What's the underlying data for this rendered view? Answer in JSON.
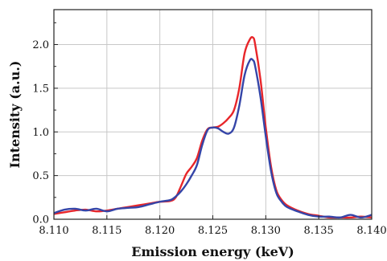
{
  "chart_data": {
    "type": "line",
    "title": "",
    "xlabel": "Emission energy (keV)",
    "ylabel": "Intensity (a.u.)",
    "xlim": [
      8.11,
      8.14
    ],
    "ylim": [
      0,
      2.4
    ],
    "xticks": [
      "8.110",
      "8.115",
      "8.120",
      "8.125",
      "8.130",
      "8.135",
      "8.140"
    ],
    "yticks": [
      "0.0",
      "0.5",
      "1.0",
      "1.5",
      "2.0"
    ],
    "grid": true,
    "colors": {
      "red": "#e8262a",
      "blue": "#3545a8",
      "grid": "#c8c8c8",
      "frame": "#222222"
    },
    "series": [
      {
        "color": "#e8262a",
        "x": [
          8.11,
          8.111,
          8.112,
          8.113,
          8.114,
          8.115,
          8.116,
          8.117,
          8.118,
          8.119,
          8.12,
          8.121,
          8.1215,
          8.122,
          8.1225,
          8.123,
          8.1235,
          8.124,
          8.1245,
          8.125,
          8.1255,
          8.126,
          8.1265,
          8.127,
          8.1275,
          8.128,
          8.1285,
          8.1288,
          8.129,
          8.1295,
          8.13,
          8.1305,
          8.131,
          8.1315,
          8.132,
          8.133,
          8.134,
          8.135,
          8.136,
          8.137,
          8.138,
          8.139,
          8.14
        ],
        "y": [
          0.06,
          0.08,
          0.1,
          0.11,
          0.09,
          0.1,
          0.12,
          0.14,
          0.16,
          0.18,
          0.2,
          0.21,
          0.25,
          0.38,
          0.52,
          0.6,
          0.7,
          0.9,
          1.03,
          1.05,
          1.06,
          1.1,
          1.16,
          1.25,
          1.5,
          1.9,
          2.06,
          2.08,
          2.0,
          1.6,
          1.05,
          0.6,
          0.33,
          0.22,
          0.16,
          0.1,
          0.06,
          0.04,
          0.02,
          0.02,
          0.02,
          0.03,
          0.02
        ]
      },
      {
        "color": "#3545a8",
        "x": [
          8.11,
          8.111,
          8.112,
          8.113,
          8.114,
          8.115,
          8.116,
          8.117,
          8.118,
          8.119,
          8.12,
          8.121,
          8.1215,
          8.122,
          8.1225,
          8.123,
          8.1235,
          8.124,
          8.1245,
          8.125,
          8.1255,
          8.126,
          8.1265,
          8.127,
          8.1275,
          8.128,
          8.1285,
          8.1288,
          8.129,
          8.1295,
          8.13,
          8.1305,
          8.131,
          8.1315,
          8.132,
          8.133,
          8.134,
          8.135,
          8.136,
          8.137,
          8.138,
          8.139,
          8.14
        ],
        "y": [
          0.07,
          0.11,
          0.12,
          0.1,
          0.12,
          0.09,
          0.12,
          0.13,
          0.14,
          0.17,
          0.2,
          0.22,
          0.26,
          0.32,
          0.4,
          0.5,
          0.62,
          0.85,
          1.02,
          1.05,
          1.04,
          1.0,
          0.98,
          1.05,
          1.3,
          1.65,
          1.82,
          1.82,
          1.75,
          1.4,
          0.95,
          0.55,
          0.3,
          0.2,
          0.14,
          0.09,
          0.05,
          0.03,
          0.03,
          0.02,
          0.05,
          0.02,
          0.05
        ]
      }
    ]
  }
}
